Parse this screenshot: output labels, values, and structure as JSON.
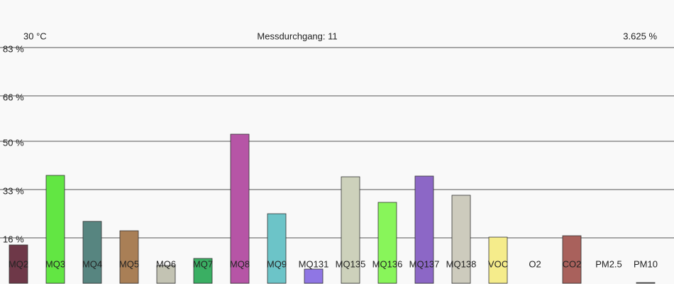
{
  "chart_data": {
    "type": "bar",
    "left_label": "30 °C",
    "title": "Messdurchgang: 11",
    "right_label": "3.625 %",
    "categories": [
      "MQ2",
      "MQ3",
      "MQ4",
      "MQ5",
      "MQ6",
      "MQ7",
      "MQ8",
      "MQ9",
      "MQ131",
      "MQ135",
      "MQ136",
      "MQ137",
      "MQ138",
      "VOC",
      "O2",
      "CO2",
      "PM2.5",
      "PM10"
    ],
    "values": [
      13.5,
      38,
      21.8,
      18.5,
      6.25,
      8.75,
      52.5,
      24.5,
      5,
      37.5,
      28.5,
      37.75,
      31,
      16.25,
      0,
      16.75,
      0,
      0.25
    ],
    "colors": [
      "#6e3848",
      "#62e643",
      "#578580",
      "#a97f56",
      "#c3c3b3",
      "#3aaf63",
      "#b655a6",
      "#6cc4c8",
      "#8f76e4",
      "#cdd1bb",
      "#88f55a",
      "#8c67c6",
      "#cdcbbd",
      "#f5ec8b",
      "#cccccc",
      "#a9615c",
      "#cccccc",
      "#999999"
    ],
    "ylim": [
      0,
      83
    ],
    "yticks": [
      {
        "value": 83,
        "label": "83 %"
      },
      {
        "value": 66,
        "label": "66 %"
      },
      {
        "value": 50,
        "label": "50 %"
      },
      {
        "value": 33,
        "label": "33 %"
      },
      {
        "value": 16,
        "label": "16 %"
      }
    ],
    "grid": true
  }
}
